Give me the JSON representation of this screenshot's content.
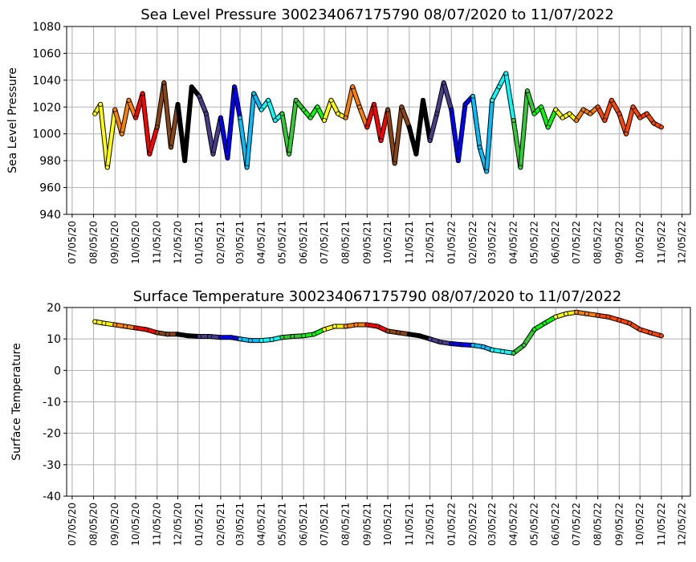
{
  "chart_data": [
    {
      "type": "line",
      "title": "Sea Level Pressure 300234067175790  08/07/2020 to 11/07/2022",
      "xlabel": "",
      "ylabel": "Sea Level Pressure",
      "ylim": [
        940,
        1080
      ],
      "yticks": [
        940,
        960,
        980,
        1000,
        1020,
        1040,
        1060,
        1080
      ],
      "xlim": [
        "2020-06-27",
        "2022-12-17"
      ],
      "xtick_labels": [
        "07/05/20",
        "08/05/20",
        "09/05/20",
        "10/05/20",
        "11/05/20",
        "12/05/20",
        "01/05/21",
        "02/05/21",
        "03/05/21",
        "04/05/21",
        "05/05/21",
        "06/05/21",
        "07/05/21",
        "08/05/21",
        "09/05/21",
        "10/05/21",
        "11/05/21",
        "12/05/21",
        "01/05/22",
        "02/05/22",
        "03/05/22",
        "04/05/22",
        "05/05/22",
        "06/05/22",
        "07/05/22",
        "08/05/22",
        "09/05/22",
        "10/05/22",
        "11/05/22",
        "12/05/22"
      ],
      "grid": true,
      "color_by_month": true,
      "month_colors": [
        "#ffff00",
        "#ff8000",
        "#ff0000",
        "#8b4513",
        "#000000",
        "#483d8b",
        "#0000ff",
        "#00bfff",
        "#00ffff",
        "#32cd32",
        "#00ff00",
        "#ffff00",
        "#ff8000",
        "#ff0000",
        "#8b4513",
        "#000000",
        "#483d8b",
        "#0000ff",
        "#00bfff",
        "#00ffff",
        "#32cd32",
        "#00ff00",
        "#ffff00",
        "#ff8000",
        "#ff4500"
      ],
      "x": [
        "2020-08-07",
        "2020-08-15",
        "2020-08-25",
        "2020-09-05",
        "2020-09-15",
        "2020-09-25",
        "2020-10-05",
        "2020-10-15",
        "2020-10-25",
        "2020-11-05",
        "2020-11-15",
        "2020-11-25",
        "2020-12-05",
        "2020-12-15",
        "2020-12-25",
        "2021-01-05",
        "2021-01-15",
        "2021-01-25",
        "2021-02-05",
        "2021-02-15",
        "2021-02-25",
        "2021-03-05",
        "2021-03-15",
        "2021-03-25",
        "2021-04-05",
        "2021-04-15",
        "2021-04-25",
        "2021-05-05",
        "2021-05-15",
        "2021-05-25",
        "2021-06-05",
        "2021-06-15",
        "2021-06-25",
        "2021-07-05",
        "2021-07-15",
        "2021-07-25",
        "2021-08-05",
        "2021-08-15",
        "2021-08-25",
        "2021-09-05",
        "2021-09-15",
        "2021-09-25",
        "2021-10-05",
        "2021-10-15",
        "2021-10-25",
        "2021-11-05",
        "2021-11-15",
        "2021-11-25",
        "2021-12-05",
        "2021-12-15",
        "2021-12-25",
        "2022-01-05",
        "2022-01-15",
        "2022-01-25",
        "2022-02-05",
        "2022-02-15",
        "2022-02-25",
        "2022-03-05",
        "2022-03-15",
        "2022-03-25",
        "2022-04-05",
        "2022-04-15",
        "2022-04-25",
        "2022-05-05",
        "2022-05-15",
        "2022-05-25",
        "2022-06-05",
        "2022-06-15",
        "2022-06-25",
        "2022-07-05",
        "2022-07-15",
        "2022-07-25",
        "2022-08-05",
        "2022-08-15",
        "2022-08-25",
        "2022-09-05",
        "2022-09-15",
        "2022-09-25",
        "2022-10-05",
        "2022-10-15",
        "2022-10-25",
        "2022-11-05"
      ],
      "values": [
        1015,
        1022,
        975,
        1018,
        1000,
        1025,
        1012,
        1030,
        985,
        1005,
        1038,
        990,
        1022,
        980,
        1035,
        1028,
        1015,
        985,
        1012,
        982,
        1035,
        1012,
        975,
        1030,
        1018,
        1025,
        1010,
        1015,
        985,
        1025,
        1018,
        1012,
        1020,
        1010,
        1025,
        1015,
        1012,
        1035,
        1020,
        1005,
        1022,
        995,
        1018,
        978,
        1020,
        1005,
        985,
        1025,
        995,
        1015,
        1038,
        1018,
        980,
        1022,
        1028,
        990,
        972,
        1025,
        1035,
        1045,
        1010,
        975,
        1032,
        1015,
        1020,
        1005,
        1018,
        1012,
        1015,
        1010,
        1018,
        1015,
        1020,
        1010,
        1025,
        1015,
        1000,
        1020,
        1012,
        1015,
        1008,
        1005
      ]
    },
    {
      "type": "line",
      "title": "Surface Temperature 300234067175790  08/07/2020 to 11/07/2022",
      "xlabel": "",
      "ylabel": "Surface Temperature",
      "ylim": [
        -40,
        20
      ],
      "yticks": [
        -40,
        -30,
        -20,
        -10,
        0,
        10,
        20
      ],
      "xlim": [
        "2020-06-27",
        "2022-12-17"
      ],
      "xtick_labels": [
        "07/05/20",
        "08/05/20",
        "09/05/20",
        "10/05/20",
        "11/05/20",
        "12/05/20",
        "01/05/21",
        "02/05/21",
        "03/05/21",
        "04/05/21",
        "05/05/21",
        "06/05/21",
        "07/05/21",
        "08/05/21",
        "09/05/21",
        "10/05/21",
        "11/05/21",
        "12/05/21",
        "01/05/22",
        "02/05/22",
        "03/05/22",
        "04/05/22",
        "05/05/22",
        "06/05/22",
        "07/05/22",
        "08/05/22",
        "09/05/22",
        "10/05/22",
        "11/05/22",
        "12/05/22"
      ],
      "grid": true,
      "color_by_month": true,
      "month_colors": [
        "#ffff00",
        "#ff8000",
        "#ff0000",
        "#8b4513",
        "#000000",
        "#483d8b",
        "#0000ff",
        "#00bfff",
        "#00ffff",
        "#32cd32",
        "#00ff00",
        "#ffff00",
        "#ff8000",
        "#ff0000",
        "#8b4513",
        "#000000",
        "#483d8b",
        "#0000ff",
        "#00bfff",
        "#00ffff",
        "#32cd32",
        "#00ff00",
        "#ffff00",
        "#ff8000",
        "#ff4500"
      ],
      "x": [
        "2020-08-07",
        "2020-08-20",
        "2020-09-05",
        "2020-09-20",
        "2020-10-05",
        "2020-10-20",
        "2020-11-05",
        "2020-11-20",
        "2020-12-05",
        "2020-12-20",
        "2021-01-05",
        "2021-01-20",
        "2021-02-05",
        "2021-02-20",
        "2021-03-05",
        "2021-03-20",
        "2021-04-05",
        "2021-04-20",
        "2021-05-05",
        "2021-05-20",
        "2021-06-05",
        "2021-06-20",
        "2021-07-05",
        "2021-07-20",
        "2021-08-05",
        "2021-08-20",
        "2021-09-05",
        "2021-09-20",
        "2021-10-05",
        "2021-10-20",
        "2021-11-05",
        "2021-11-20",
        "2021-12-05",
        "2021-12-20",
        "2022-01-05",
        "2022-01-20",
        "2022-02-05",
        "2022-02-20",
        "2022-03-05",
        "2022-03-20",
        "2022-04-05",
        "2022-04-20",
        "2022-05-05",
        "2022-05-20",
        "2022-06-05",
        "2022-06-20",
        "2022-07-05",
        "2022-07-20",
        "2022-08-05",
        "2022-08-20",
        "2022-09-05",
        "2022-09-20",
        "2022-10-05",
        "2022-10-20",
        "2022-11-05"
      ],
      "values": [
        15.5,
        15,
        14.5,
        14,
        13.5,
        13,
        12,
        11.5,
        11.5,
        11,
        10.8,
        10.8,
        10.5,
        10.5,
        10,
        9.5,
        9.5,
        9.8,
        10.5,
        10.8,
        11,
        11.5,
        13,
        14,
        14,
        14.5,
        14.5,
        14,
        12.5,
        12,
        11.5,
        11,
        10,
        9,
        8.5,
        8.2,
        8,
        7.5,
        6.5,
        6,
        5.5,
        8,
        13,
        15,
        17,
        18,
        18.5,
        18,
        17.5,
        17,
        16,
        15,
        13,
        12,
        11
      ]
    }
  ]
}
